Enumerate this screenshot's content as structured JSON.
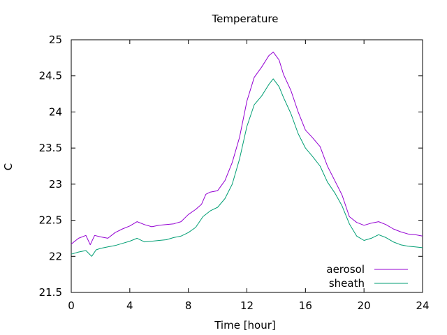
{
  "chart_data": {
    "type": "line",
    "title": "Temperature",
    "xlabel": "Time [hour]",
    "ylabel": "C",
    "xlim": [
      0,
      24
    ],
    "ylim": [
      21.5,
      25
    ],
    "xticks": [
      0,
      4,
      8,
      12,
      16,
      20,
      24
    ],
    "yticks": [
      21.5,
      22,
      22.5,
      23,
      23.5,
      24,
      24.5,
      25
    ],
    "grid": false,
    "legend_position": "bottom-right",
    "series": [
      {
        "name": "aerosol",
        "color": "#9400d3",
        "points": [
          [
            0,
            22.17
          ],
          [
            0.5,
            22.25
          ],
          [
            1,
            22.29
          ],
          [
            1.3,
            22.16
          ],
          [
            1.6,
            22.29
          ],
          [
            2,
            22.27
          ],
          [
            2.5,
            22.25
          ],
          [
            3,
            22.33
          ],
          [
            3.5,
            22.38
          ],
          [
            4,
            22.42
          ],
          [
            4.5,
            22.48
          ],
          [
            5,
            22.44
          ],
          [
            5.5,
            22.41
          ],
          [
            6,
            22.43
          ],
          [
            6.5,
            22.44
          ],
          [
            7,
            22.45
          ],
          [
            7.5,
            22.48
          ],
          [
            8,
            22.58
          ],
          [
            8.5,
            22.65
          ],
          [
            8.9,
            22.72
          ],
          [
            9.2,
            22.86
          ],
          [
            9.5,
            22.89
          ],
          [
            10,
            22.91
          ],
          [
            10.5,
            23.05
          ],
          [
            11,
            23.3
          ],
          [
            11.5,
            23.65
          ],
          [
            12,
            24.15
          ],
          [
            12.5,
            24.48
          ],
          [
            13,
            24.62
          ],
          [
            13.5,
            24.78
          ],
          [
            13.8,
            24.83
          ],
          [
            14.2,
            24.72
          ],
          [
            14.5,
            24.52
          ],
          [
            15,
            24.3
          ],
          [
            15.5,
            24.0
          ],
          [
            16,
            23.75
          ],
          [
            16.5,
            23.64
          ],
          [
            17,
            23.52
          ],
          [
            17.5,
            23.25
          ],
          [
            18,
            23.05
          ],
          [
            18.5,
            22.85
          ],
          [
            19,
            22.55
          ],
          [
            19.5,
            22.47
          ],
          [
            20,
            22.43
          ],
          [
            20.5,
            22.46
          ],
          [
            21,
            22.48
          ],
          [
            21.5,
            22.44
          ],
          [
            22,
            22.38
          ],
          [
            22.5,
            22.34
          ],
          [
            23,
            22.31
          ],
          [
            23.5,
            22.3
          ],
          [
            24,
            22.28
          ]
        ]
      },
      {
        "name": "sheath",
        "color": "#009e73",
        "points": [
          [
            0,
            22.03
          ],
          [
            0.5,
            22.06
          ],
          [
            1,
            22.08
          ],
          [
            1.4,
            22.0
          ],
          [
            1.7,
            22.09
          ],
          [
            2,
            22.11
          ],
          [
            2.5,
            22.13
          ],
          [
            3,
            22.15
          ],
          [
            3.5,
            22.18
          ],
          [
            4,
            22.21
          ],
          [
            4.5,
            22.25
          ],
          [
            5,
            22.2
          ],
          [
            5.5,
            22.21
          ],
          [
            6,
            22.22
          ],
          [
            6.5,
            22.23
          ],
          [
            7,
            22.26
          ],
          [
            7.5,
            22.28
          ],
          [
            8,
            22.33
          ],
          [
            8.5,
            22.4
          ],
          [
            9,
            22.55
          ],
          [
            9.5,
            22.63
          ],
          [
            10,
            22.68
          ],
          [
            10.5,
            22.8
          ],
          [
            11,
            23.0
          ],
          [
            11.5,
            23.35
          ],
          [
            12,
            23.8
          ],
          [
            12.5,
            24.1
          ],
          [
            13,
            24.22
          ],
          [
            13.5,
            24.38
          ],
          [
            13.8,
            24.46
          ],
          [
            14.2,
            24.35
          ],
          [
            14.5,
            24.2
          ],
          [
            15,
            23.98
          ],
          [
            15.5,
            23.7
          ],
          [
            16,
            23.5
          ],
          [
            16.5,
            23.38
          ],
          [
            17,
            23.25
          ],
          [
            17.5,
            23.03
          ],
          [
            18,
            22.88
          ],
          [
            18.5,
            22.7
          ],
          [
            19,
            22.45
          ],
          [
            19.5,
            22.28
          ],
          [
            20,
            22.22
          ],
          [
            20.5,
            22.25
          ],
          [
            21,
            22.3
          ],
          [
            21.5,
            22.26
          ],
          [
            22,
            22.2
          ],
          [
            22.5,
            22.16
          ],
          [
            23,
            22.14
          ],
          [
            23.5,
            22.13
          ],
          [
            24,
            22.12
          ]
        ]
      }
    ]
  }
}
